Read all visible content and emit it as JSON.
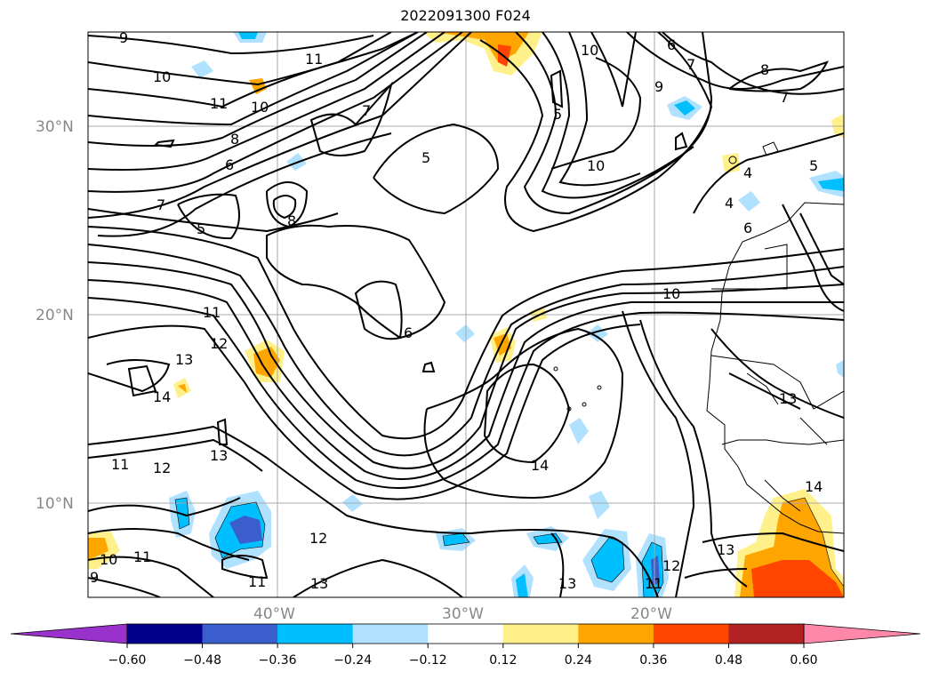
{
  "title": "2022091300 F024",
  "map": {
    "lat_labels": [
      "30°N",
      "20°N",
      "10°N"
    ],
    "lon_labels": [
      "40°W",
      "30°W",
      "20°W"
    ],
    "contour_labels": [
      "9",
      "10",
      "11",
      "11",
      "10",
      "8",
      "6",
      "7",
      "5",
      "8",
      "7",
      "5",
      "5",
      "10",
      "10",
      "6",
      "7",
      "8",
      "9",
      "4",
      "4",
      "6",
      "5",
      "7",
      "10",
      "11",
      "12",
      "13",
      "14",
      "13",
      "11",
      "12",
      "12",
      "11",
      "11",
      "10",
      "9",
      "6",
      "14",
      "13",
      "12",
      "11",
      "13",
      "14",
      "13",
      "13"
    ]
  },
  "colorbar": {
    "ticks": [
      "−0.60",
      "−0.48",
      "−0.36",
      "−0.24",
      "−0.12",
      "0.12",
      "0.24",
      "0.36",
      "0.48",
      "0.60"
    ],
    "colors": [
      "#9932cc",
      "#00008b",
      "#3a5fcd",
      "#00bfff",
      "#b0e2ff",
      "#ffffff",
      "#fff08a",
      "#ffa500",
      "#ff4500",
      "#b22222",
      "#ff88aa"
    ],
    "meaning": "shaded anomaly levels; extend both"
  }
}
